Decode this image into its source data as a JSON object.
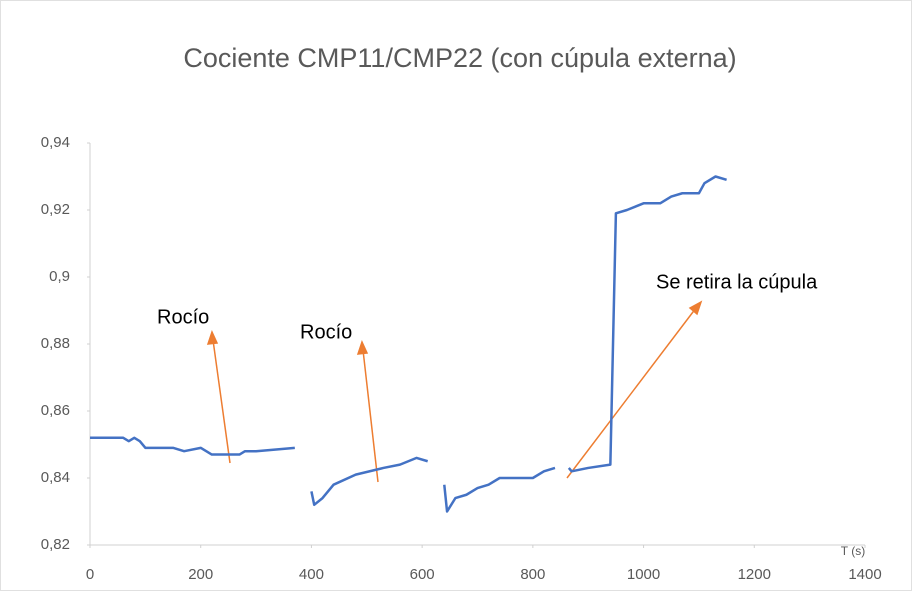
{
  "chart_data": {
    "type": "line",
    "title": "Cociente    CMP11/CMP22 (con cúpula externa)",
    "xlabel": "T (s)",
    "annotations": [
      "Rocío",
      "Rocío",
      "Se retira la cúpula"
    ],
    "x": [
      0,
      60,
      70,
      80,
      90,
      100,
      150,
      170,
      200,
      220,
      270,
      280,
      300,
      370,
      385,
      400,
      405,
      420,
      440,
      480,
      530,
      560,
      590,
      610,
      625,
      640,
      645,
      660,
      680,
      700,
      720,
      740,
      800,
      820,
      840,
      852,
      865,
      870,
      900,
      940,
      950,
      970,
      1000,
      1030,
      1050,
      1070,
      1100,
      1110,
      1130,
      1150
    ],
    "series": [
      {
        "name": "CMP11/CMP22",
        "color": "#4472c4",
        "values": [
          0.852,
          0.852,
          0.851,
          0.852,
          0.851,
          0.849,
          0.849,
          0.848,
          0.849,
          0.847,
          0.847,
          0.848,
          0.848,
          0.849,
          null,
          0.836,
          0.832,
          0.834,
          0.838,
          0.841,
          0.843,
          0.844,
          0.846,
          0.845,
          null,
          0.838,
          0.83,
          0.834,
          0.835,
          0.837,
          0.838,
          0.84,
          0.84,
          0.842,
          0.843,
          null,
          0.843,
          0.842,
          0.843,
          0.844,
          0.919,
          0.92,
          0.922,
          0.922,
          0.924,
          0.925,
          0.925,
          0.928,
          0.93,
          0.929
        ]
      }
    ],
    "xlim": [
      0,
      1400
    ],
    "xticks": [
      0,
      200,
      400,
      600,
      800,
      1000,
      1200,
      1400
    ],
    "ylim": [
      0.82,
      0.94
    ],
    "yticks": [
      {
        "value": 0.82,
        "label": "0,82"
      },
      {
        "value": 0.84,
        "label": "0,84"
      },
      {
        "value": 0.86,
        "label": "0,86"
      },
      {
        "value": 0.88,
        "label": "0,88"
      },
      {
        "value": 0.9,
        "label": "0,9"
      },
      {
        "value": 0.92,
        "label": "0,92"
      },
      {
        "value": 0.94,
        "label": "0,94"
      }
    ],
    "annotation_color": "#ed7d31",
    "grid": false
  }
}
